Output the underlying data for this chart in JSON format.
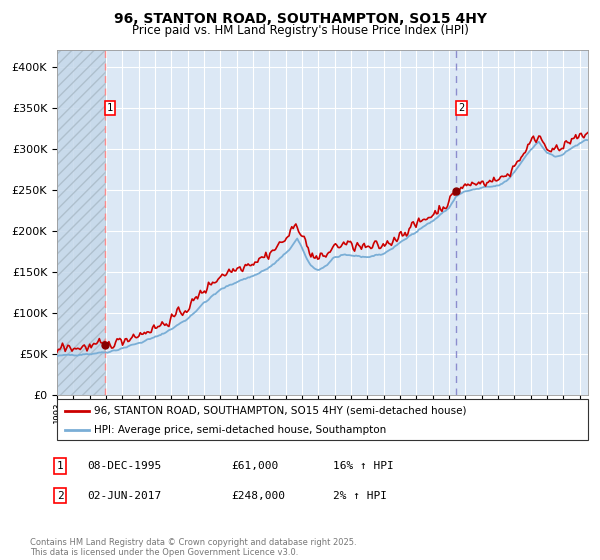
{
  "title": "96, STANTON ROAD, SOUTHAMPTON, SO15 4HY",
  "subtitle": "Price paid vs. HM Land Registry's House Price Index (HPI)",
  "legend_line1": "96, STANTON ROAD, SOUTHAMPTON, SO15 4HY (semi-detached house)",
  "legend_line2": "HPI: Average price, semi-detached house, Southampton",
  "purchase1_date": "08-DEC-1995",
  "purchase1_price": 61000,
  "purchase1_hpi": "16% ↑ HPI",
  "purchase2_date": "02-JUN-2017",
  "purchase2_price": 248000,
  "purchase2_hpi": "2% ↑ HPI",
  "purchase1_year": 1995.92,
  "purchase2_year": 2017.42,
  "hpi_color": "#7aaed6",
  "price_color": "#cc0000",
  "vline1_color": "#ff8888",
  "vline2_color": "#8888cc",
  "dot_color": "#880000",
  "background_color": "#dce8f5",
  "ylim": [
    0,
    420000
  ],
  "xlim_start": 1993.0,
  "xlim_end": 2025.5,
  "footer": "Contains HM Land Registry data © Crown copyright and database right 2025.\nThis data is licensed under the Open Government Licence v3.0."
}
